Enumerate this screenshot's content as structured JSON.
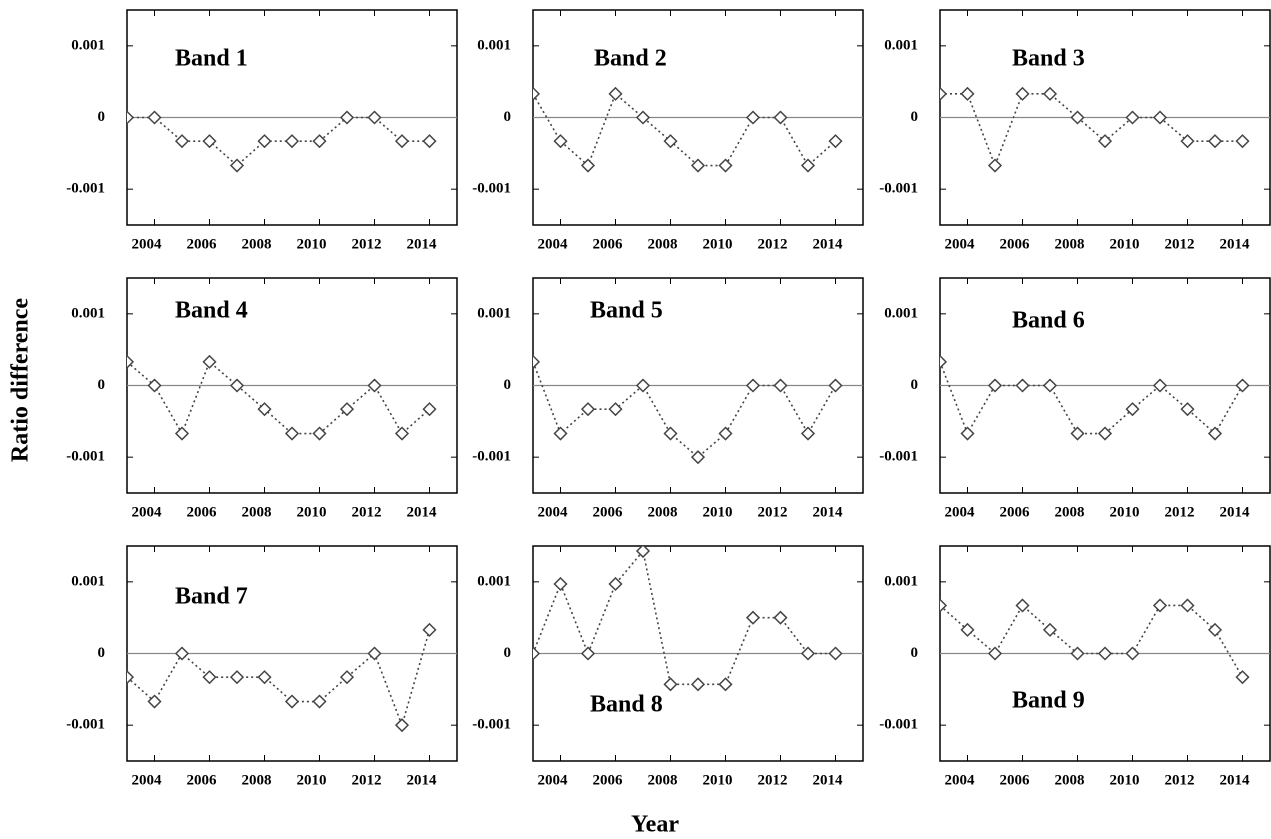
{
  "ylabel": "Ratio difference",
  "xlabel": "Year",
  "chart_data": [
    {
      "type": "line",
      "title": "Band 1",
      "x": [
        2003,
        2004,
        2005,
        2006,
        2007,
        2008,
        2009,
        2010,
        2011,
        2012,
        2013,
        2014
      ],
      "values": [
        0,
        0,
        -0.00033,
        -0.00033,
        -0.00067,
        -0.00033,
        -0.00033,
        -0.00033,
        0,
        0,
        -0.00033,
        -0.00033
      ],
      "color": "#444444",
      "xlim": [
        2003,
        2015
      ],
      "xticks": [
        2004,
        2006,
        2008,
        2010,
        2012,
        2014
      ],
      "ylim": [
        -0.0015,
        0.0015
      ],
      "yticks": [
        -0.001,
        0,
        0.001
      ],
      "hline": 0,
      "marker": "diamond"
    },
    {
      "type": "line",
      "title": "Band 2",
      "x": [
        2003,
        2004,
        2005,
        2006,
        2007,
        2008,
        2009,
        2010,
        2011,
        2012,
        2013,
        2014
      ],
      "values": [
        0.00033,
        -0.00033,
        -0.00067,
        0.00033,
        0,
        -0.00033,
        -0.00067,
        -0.00067,
        0,
        0,
        -0.00067,
        -0.00033
      ],
      "color": "#444444",
      "xlim": [
        2003,
        2015
      ],
      "xticks": [
        2004,
        2006,
        2008,
        2010,
        2012,
        2014
      ],
      "ylim": [
        -0.0015,
        0.0015
      ],
      "yticks": [
        -0.001,
        0,
        0.001
      ],
      "hline": 0,
      "marker": "diamond"
    },
    {
      "type": "line",
      "title": "Band 3",
      "x": [
        2003,
        2004,
        2005,
        2006,
        2007,
        2008,
        2009,
        2010,
        2011,
        2012,
        2013,
        2014
      ],
      "values": [
        0.00033,
        0.00033,
        -0.00067,
        0.00033,
        0.00033,
        0,
        -0.00033,
        0,
        0,
        -0.00033,
        -0.00033,
        -0.00033
      ],
      "color": "#444444",
      "xlim": [
        2003,
        2015
      ],
      "xticks": [
        2004,
        2006,
        2008,
        2010,
        2012,
        2014
      ],
      "ylim": [
        -0.0015,
        0.0015
      ],
      "yticks": [
        -0.001,
        0,
        0.001
      ],
      "hline": 0,
      "marker": "diamond"
    },
    {
      "type": "line",
      "title": "Band 4",
      "x": [
        2003,
        2004,
        2005,
        2006,
        2007,
        2008,
        2009,
        2010,
        2011,
        2012,
        2013,
        2014
      ],
      "values": [
        0.00033,
        0,
        -0.00067,
        0.00033,
        0,
        -0.00033,
        -0.00067,
        -0.00067,
        -0.00033,
        0,
        -0.00067,
        -0.00033
      ],
      "color": "#444444",
      "xlim": [
        2003,
        2015
      ],
      "xticks": [
        2004,
        2006,
        2008,
        2010,
        2012,
        2014
      ],
      "ylim": [
        -0.0015,
        0.0015
      ],
      "yticks": [
        -0.001,
        0,
        0.001
      ],
      "hline": 0,
      "marker": "diamond"
    },
    {
      "type": "line",
      "title": "Band 5",
      "x": [
        2003,
        2004,
        2005,
        2006,
        2007,
        2008,
        2009,
        2010,
        2011,
        2012,
        2013,
        2014
      ],
      "values": [
        0.00033,
        -0.00067,
        -0.00033,
        -0.00033,
        0,
        -0.00067,
        -0.001,
        -0.00067,
        0,
        0,
        -0.00067,
        0
      ],
      "color": "#444444",
      "xlim": [
        2003,
        2015
      ],
      "xticks": [
        2004,
        2006,
        2008,
        2010,
        2012,
        2014
      ],
      "ylim": [
        -0.0015,
        0.0015
      ],
      "yticks": [
        -0.001,
        0,
        0.001
      ],
      "hline": 0,
      "marker": "diamond"
    },
    {
      "type": "line",
      "title": "Band 6",
      "x": [
        2003,
        2004,
        2005,
        2006,
        2007,
        2008,
        2009,
        2010,
        2011,
        2012,
        2013,
        2014
      ],
      "values": [
        0.00033,
        -0.00067,
        0,
        0,
        0,
        -0.00067,
        -0.00067,
        -0.00033,
        0,
        -0.00033,
        -0.00067,
        0
      ],
      "color": "#444444",
      "xlim": [
        2003,
        2015
      ],
      "xticks": [
        2004,
        2006,
        2008,
        2010,
        2012,
        2014
      ],
      "ylim": [
        -0.0015,
        0.0015
      ],
      "yticks": [
        -0.001,
        0,
        0.001
      ],
      "hline": 0,
      "marker": "diamond"
    },
    {
      "type": "line",
      "title": "Band 7",
      "x": [
        2003,
        2004,
        2005,
        2006,
        2007,
        2008,
        2009,
        2010,
        2011,
        2012,
        2013,
        2014
      ],
      "values": [
        -0.00033,
        -0.00067,
        0,
        -0.00033,
        -0.00033,
        -0.00033,
        -0.00067,
        -0.00067,
        -0.00033,
        0,
        -0.001,
        0.00033
      ],
      "color": "#444444",
      "xlim": [
        2003,
        2015
      ],
      "xticks": [
        2004,
        2006,
        2008,
        2010,
        2012,
        2014
      ],
      "ylim": [
        -0.0015,
        0.0015
      ],
      "yticks": [
        -0.001,
        0,
        0.001
      ],
      "hline": 0,
      "marker": "diamond"
    },
    {
      "type": "line",
      "title": "Band 8",
      "x": [
        2003,
        2004,
        2005,
        2006,
        2007,
        2008,
        2009,
        2010,
        2011,
        2012,
        2013,
        2014
      ],
      "values": [
        0,
        0.00097,
        0,
        0.00097,
        0.00143,
        -0.00043,
        -0.00043,
        -0.00043,
        0.0005,
        0.0005,
        0,
        0
      ],
      "color": "#444444",
      "xlim": [
        2003,
        2015
      ],
      "xticks": [
        2004,
        2006,
        2008,
        2010,
        2012,
        2014
      ],
      "ylim": [
        -0.0015,
        0.0015
      ],
      "yticks": [
        -0.001,
        0,
        0.001
      ],
      "hline": 0,
      "marker": "diamond"
    },
    {
      "type": "line",
      "title": "Band 9",
      "x": [
        2003,
        2004,
        2005,
        2006,
        2007,
        2008,
        2009,
        2010,
        2011,
        2012,
        2013,
        2014
      ],
      "values": [
        0.00067,
        0.00033,
        0,
        0.00067,
        0.00033,
        0,
        0,
        0,
        0.00067,
        0.00067,
        0.00033,
        -0.00033
      ],
      "color": "#444444",
      "xlim": [
        2003,
        2015
      ],
      "xticks": [
        2004,
        2006,
        2008,
        2010,
        2012,
        2014
      ],
      "ylim": [
        -0.0015,
        0.0015
      ],
      "yticks": [
        -0.001,
        0,
        0.001
      ],
      "hline": 0,
      "marker": "diamond"
    }
  ]
}
